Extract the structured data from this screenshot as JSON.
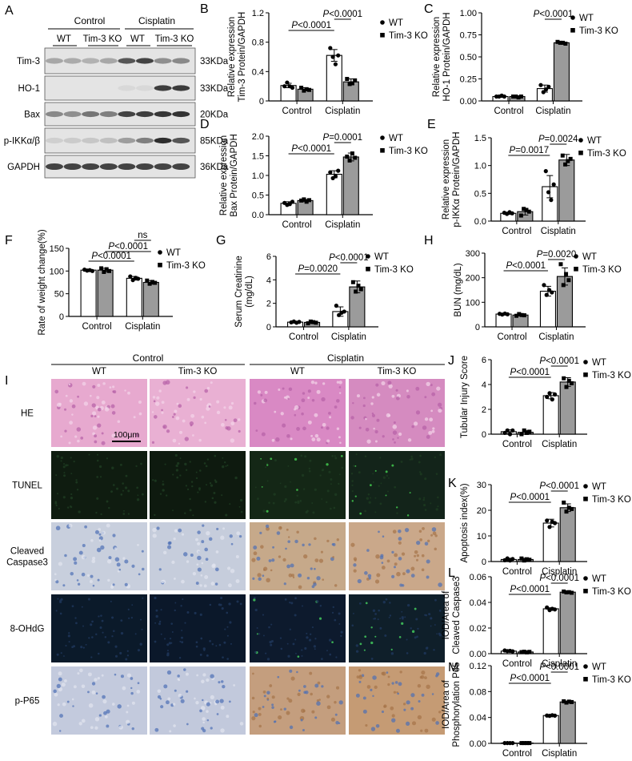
{
  "panel_letters": {
    "A": "A",
    "B": "B",
    "C": "C",
    "D": "D",
    "E": "E",
    "F": "F",
    "G": "G",
    "H": "H",
    "I": "I",
    "J": "J",
    "K": "K",
    "L": "L",
    "M": "M"
  },
  "western_blot": {
    "group_control": "Control",
    "group_cisplatin": "Cisplatin",
    "col_wt_1": "WT",
    "col_ko_1": "Tim-3 KO",
    "col_wt_2": "WT",
    "col_ko_2": "Tim-3 KO",
    "rows": [
      {
        "name": "Tim-3",
        "kda": "33KDa"
      },
      {
        "name": "HO-1",
        "kda": "33KDa"
      },
      {
        "name": "Bax",
        "kda": "20KDa"
      },
      {
        "name": "p-IKKα/β",
        "kda": "85KDa"
      },
      {
        "name": "GAPDH",
        "kda": "36KDa"
      }
    ]
  },
  "histology": {
    "group_control": "Control",
    "group_cisplatin": "Cisplatin",
    "columns": [
      "WT",
      "Tim-3 KO",
      "WT",
      "Tim-3 KO"
    ],
    "rows": [
      "HE",
      "TUNEL",
      "Cleaved\nCaspase3",
      "8-OHdG",
      "p-P65"
    ],
    "scalebar": "100μm",
    "colors": {
      "HE": [
        "#e7a9cf",
        "#e9b0d3",
        "#d989c4",
        "#d58bc0"
      ],
      "TUNEL": [
        "#0f1c10",
        "#0e1a0f",
        "#142716",
        "#13241a"
      ],
      "Caspase": [
        "#c8cfdd",
        "#c6cddc",
        "#c6a98a",
        "#caa88a"
      ],
      "OHdG": [
        "#0b1a2a",
        "#0b182a",
        "#0d1a2d",
        "#0f1f2a"
      ],
      "P65": [
        "#c3cadd",
        "#c2c9dc",
        "#c49e7e",
        "#c59b74"
      ]
    }
  },
  "chart_data": [
    {
      "panel": "B",
      "type": "bar",
      "categories": [
        "Control",
        "Cisplatin"
      ],
      "series": [
        {
          "name": "WT",
          "values": [
            0.21,
            0.62
          ],
          "sd": [
            0.03,
            0.08
          ],
          "points": [
            [
              0.2,
              0.25,
              0.2,
              0.18
            ],
            [
              0.72,
              0.6,
              0.5,
              0.62
            ]
          ]
        },
        {
          "name": "Tim-3 KO",
          "values": [
            0.16,
            0.26
          ],
          "sd": [
            0.02,
            0.04
          ],
          "points": [
            [
              0.18,
              0.14,
              0.16,
              0.15
            ],
            [
              0.3,
              0.23,
              0.24,
              0.28
            ]
          ]
        }
      ],
      "ylabel": "Relative expression\nTim-3 Protein/GAPDH",
      "ylim": [
        0,
        1.2
      ],
      "yticks": [
        "0",
        "0.4",
        "0.8",
        "1.2"
      ],
      "comparisons": [
        {
          "text": "P<0.0001",
          "from": [
            0,
            0
          ],
          "to": [
            1,
            0
          ]
        },
        {
          "text": "P<0.0001",
          "from": [
            1,
            0
          ],
          "to": [
            1,
            1
          ]
        }
      ]
    },
    {
      "panel": "C",
      "type": "bar",
      "categories": [
        "Control",
        "Cisplatin"
      ],
      "series": [
        {
          "name": "WT",
          "values": [
            0.05,
            0.14
          ],
          "sd": [
            0.01,
            0.04
          ],
          "points": [
            [
              0.05,
              0.05,
              0.06,
              0.05
            ],
            [
              0.18,
              0.1,
              0.13,
              0.16
            ]
          ]
        },
        {
          "name": "Tim-3 KO",
          "values": [
            0.05,
            0.66
          ],
          "sd": [
            0.005,
            0.01
          ],
          "points": [
            [
              0.05,
              0.05,
              0.04,
              0.05
            ],
            [
              0.67,
              0.66,
              0.66,
              0.65
            ]
          ]
        }
      ],
      "ylabel": "Relative expression\nHO-1 Protein/GAPDH",
      "ylim": [
        0,
        1.0
      ],
      "yticks": [
        "0.00",
        "0.25",
        "0.50",
        "0.75",
        "1.00"
      ],
      "comparisons": [
        {
          "text": "P<0.0001",
          "from": [
            1,
            0
          ],
          "to": [
            1,
            1
          ]
        }
      ]
    },
    {
      "panel": "D",
      "type": "bar",
      "categories": [
        "Control",
        "Cisplatin"
      ],
      "series": [
        {
          "name": "WT",
          "values": [
            0.29,
            1.03
          ],
          "sd": [
            0.04,
            0.09
          ],
          "points": [
            [
              0.3,
              0.25,
              0.27,
              0.33
            ],
            [
              1.08,
              0.93,
              0.98,
              1.12
            ]
          ]
        },
        {
          "name": "Tim-3 KO",
          "values": [
            0.36,
            1.47
          ],
          "sd": [
            0.03,
            0.1
          ],
          "points": [
            [
              0.36,
              0.39,
              0.33,
              0.37
            ],
            [
              1.48,
              1.38,
              1.56,
              1.45
            ]
          ]
        }
      ],
      "ylabel": "Relative expression\nBax Protein/GAPDH",
      "ylim": [
        0,
        2.0
      ],
      "yticks": [
        "0.0",
        "0.5",
        "1.0",
        "1.5",
        "2.0"
      ],
      "comparisons": [
        {
          "text": "P<0.0001",
          "from": [
            0,
            0
          ],
          "to": [
            1,
            0
          ]
        },
        {
          "text": "P=0.0001",
          "from": [
            1,
            0
          ],
          "to": [
            1,
            1
          ]
        }
      ]
    },
    {
      "panel": "E",
      "type": "bar",
      "categories": [
        "Control",
        "Cisplatin"
      ],
      "series": [
        {
          "name": "WT",
          "values": [
            0.14,
            0.62
          ],
          "sd": [
            0.02,
            0.2
          ],
          "points": [
            [
              0.15,
              0.13,
              0.16,
              0.14
            ],
            [
              0.9,
              0.52,
              0.38,
              0.66
            ]
          ]
        },
        {
          "name": "Tim-3 KO",
          "values": [
            0.17,
            1.1
          ],
          "sd": [
            0.06,
            0.1
          ],
          "points": [
            [
              0.1,
              0.22,
              0.2,
              0.17
            ],
            [
              1.18,
              1.02,
              1.08,
              1.12
            ]
          ]
        }
      ],
      "ylabel": "Relative expression\np-IKKα Protein/GAPDH",
      "ylim": [
        0,
        1.5
      ],
      "yticks": [
        "0.0",
        "0.5",
        "1.0",
        "1.5"
      ],
      "comparisons": [
        {
          "text": "P=0.0017",
          "from": [
            0,
            0
          ],
          "to": [
            1,
            0
          ]
        },
        {
          "text": "P=0.0024",
          "from": [
            1,
            0
          ],
          "to": [
            1,
            1
          ]
        }
      ]
    },
    {
      "panel": "F",
      "type": "bar",
      "categories": [
        "Control",
        "Cisplatin"
      ],
      "series": [
        {
          "name": "WT",
          "values": [
            102,
            84
          ],
          "sd": [
            2,
            4
          ],
          "points": [
            [
              103,
              101,
              102,
              100
            ],
            [
              88,
              80,
              85,
              83
            ]
          ]
        },
        {
          "name": "Tim-3 KO",
          "values": [
            102,
            75
          ],
          "sd": [
            4,
            4
          ],
          "points": [
            [
              106,
              98,
              104,
              100
            ],
            [
              79,
              72,
              76,
              74
            ]
          ]
        }
      ],
      "ylabel": "Rate of weight change(%)",
      "ylim": [
        0,
        150
      ],
      "yticks": [
        "0",
        "50",
        "100",
        "150"
      ],
      "comparisons": [
        {
          "text": "P<0.0001",
          "from": [
            0,
            0
          ],
          "to": [
            1,
            0
          ]
        },
        {
          "text": "P<0.0001",
          "from": [
            0,
            1
          ],
          "to": [
            1,
            1
          ]
        },
        {
          "text": "ns",
          "from": [
            1,
            0
          ],
          "to": [
            1,
            1
          ]
        }
      ]
    },
    {
      "panel": "G",
      "type": "bar",
      "categories": [
        "Control",
        "Cisplatin"
      ],
      "series": [
        {
          "name": "WT",
          "values": [
            0.4,
            1.3
          ],
          "sd": [
            0.05,
            0.4
          ],
          "points": [
            [
              0.38,
              0.45,
              0.35,
              0.42
            ],
            [
              1.8,
              1.0,
              1.2,
              1.3
            ]
          ]
        },
        {
          "name": "Tim-3 KO",
          "values": [
            0.38,
            3.4
          ],
          "sd": [
            0.1,
            0.5
          ],
          "points": [
            [
              0.3,
              0.45,
              0.4,
              0.35
            ],
            [
              3.8,
              3.0,
              3.5,
              3.2
            ]
          ]
        }
      ],
      "ylabel": "Serum Creatinine\n(mg/dL)",
      "ylim": [
        0,
        6
      ],
      "yticks": [
        "0",
        "2",
        "4",
        "6"
      ],
      "comparisons": [
        {
          "text": "P=0.0020",
          "from": [
            0,
            0
          ],
          "to": [
            1,
            0
          ]
        },
        {
          "text": "P<0.0001",
          "from": [
            1,
            0
          ],
          "to": [
            1,
            1
          ]
        }
      ]
    },
    {
      "panel": "H",
      "type": "bar",
      "categories": [
        "Control",
        "Cisplatin"
      ],
      "series": [
        {
          "name": "WT",
          "values": [
            52,
            145
          ],
          "sd": [
            3,
            20
          ],
          "points": [
            [
              53,
              50,
              54,
              51
            ],
            [
              170,
              130,
              150,
              140
            ]
          ]
        },
        {
          "name": "Tim-3 KO",
          "values": [
            48,
            205
          ],
          "sd": [
            4,
            35
          ],
          "points": [
            [
              45,
              52,
              48,
              47
            ],
            [
              255,
              170,
              215,
              190
            ]
          ]
        }
      ],
      "ylabel": "BUN (mg/dL)",
      "ylim": [
        0,
        300
      ],
      "yticks": [
        "0",
        "100",
        "200",
        "300"
      ],
      "comparisons": [
        {
          "text": "P<0.0001",
          "from": [
            0,
            0
          ],
          "to": [
            1,
            0
          ]
        },
        {
          "text": "P=0.0020",
          "from": [
            1,
            0
          ],
          "to": [
            1,
            1
          ]
        }
      ]
    },
    {
      "panel": "J",
      "type": "bar",
      "categories": [
        "Control",
        "Cisplatin"
      ],
      "series": [
        {
          "name": "WT",
          "values": [
            0.2,
            3.1
          ],
          "sd": [
            0.15,
            0.25
          ],
          "points": [
            [
              0.1,
              0.3,
              0.0,
              0.3
            ],
            [
              3.0,
              3.3,
              2.8,
              3.2
            ]
          ]
        },
        {
          "name": "Tim-3 KO",
          "values": [
            0.15,
            4.2
          ],
          "sd": [
            0.15,
            0.35
          ],
          "points": [
            [
              0.0,
              0.3,
              0.1,
              0.2
            ],
            [
              4.5,
              3.8,
              4.3,
              4.1
            ]
          ]
        }
      ],
      "ylabel": "Tubular Injury Score",
      "ylim": [
        0,
        6
      ],
      "yticks": [
        "0",
        "2",
        "4",
        "6"
      ],
      "comparisons": [
        {
          "text": "P<0.0001",
          "from": [
            0,
            0
          ],
          "to": [
            1,
            0
          ]
        },
        {
          "text": "P<0.0001",
          "from": [
            1,
            0
          ],
          "to": [
            1,
            1
          ]
        }
      ]
    },
    {
      "panel": "K",
      "type": "bar",
      "categories": [
        "Control",
        "Cisplatin"
      ],
      "series": [
        {
          "name": "WT",
          "values": [
            0.8,
            15
          ],
          "sd": [
            0.5,
            1.5
          ],
          "points": [
            [
              0.5,
              1.2,
              0.4,
              1.0
            ],
            [
              16,
              13.5,
              15.5,
              15
            ]
          ]
        },
        {
          "name": "Tim-3 KO",
          "values": [
            0.8,
            21
          ],
          "sd": [
            0.5,
            1.5
          ],
          "points": [
            [
              1.2,
              0.4,
              0.9,
              0.7
            ],
            [
              23,
              19.5,
              21,
              20.5
            ]
          ]
        }
      ],
      "ylabel": "Apoptosis index(%)",
      "ylim": [
        0,
        30
      ],
      "yticks": [
        "0",
        "10",
        "20",
        "30"
      ],
      "comparisons": [
        {
          "text": "P<0.0001",
          "from": [
            0,
            0
          ],
          "to": [
            1,
            0
          ]
        },
        {
          "text": "P<0.0001",
          "from": [
            1,
            0
          ],
          "to": [
            1,
            1
          ]
        }
      ]
    },
    {
      "panel": "L",
      "type": "bar",
      "categories": [
        "Control",
        "Cisplatin"
      ],
      "series": [
        {
          "name": "WT",
          "values": [
            0.002,
            0.035
          ],
          "sd": [
            0.0005,
            0.0008
          ],
          "points": [
            [
              0.0025,
              0.002,
              0.0022,
              0.0018
            ],
            [
              0.036,
              0.034,
              0.035,
              0.0345
            ]
          ]
        },
        {
          "name": "Tim-3 KO",
          "values": [
            0.0013,
            0.048
          ],
          "sd": [
            0.0004,
            0.0006
          ],
          "points": [
            [
              0.0012,
              0.0015,
              0.001,
              0.0014
            ],
            [
              0.0485,
              0.0478,
              0.048,
              0.0475
            ]
          ]
        }
      ],
      "ylabel": "IOD/Area of\nCleaved Caspase3",
      "ylim": [
        0,
        0.06
      ],
      "yticks": [
        "0.00",
        "0.02",
        "0.04",
        "0.06"
      ],
      "comparisons": [
        {
          "text": "P<0.0001",
          "from": [
            0,
            0
          ],
          "to": [
            1,
            0
          ]
        },
        {
          "text": "P<0.0001",
          "from": [
            1,
            0
          ],
          "to": [
            1,
            1
          ]
        }
      ]
    },
    {
      "panel": "M",
      "type": "bar",
      "categories": [
        "Control",
        "Cisplatin"
      ],
      "series": [
        {
          "name": "WT",
          "values": [
            0.0005,
            0.043
          ],
          "sd": [
            0.0002,
            0.0008
          ],
          "points": [
            [
              0.0005,
              0.0005,
              0.0005,
              0.0005
            ],
            [
              0.043,
              0.0425,
              0.0435,
              0.0428
            ]
          ]
        },
        {
          "name": "Tim-3 KO",
          "values": [
            0.0005,
            0.064
          ],
          "sd": [
            0.0002,
            0.001
          ],
          "points": [
            [
              0.0005,
              0.0005,
              0.0005,
              0.0005
            ],
            [
              0.065,
              0.063,
              0.0645,
              0.0638
            ]
          ]
        }
      ],
      "ylabel": "IOD/Area of\nPhosphorylation P65",
      "ylim": [
        0,
        0.12
      ],
      "yticks": [
        "0.00",
        "0.04",
        "0.08",
        "0.12"
      ],
      "comparisons": [
        {
          "text": "P<0.0001",
          "from": [
            0,
            0
          ],
          "to": [
            1,
            0
          ]
        },
        {
          "text": "P<0.0001",
          "from": [
            1,
            0
          ],
          "to": [
            1,
            1
          ]
        }
      ]
    }
  ]
}
